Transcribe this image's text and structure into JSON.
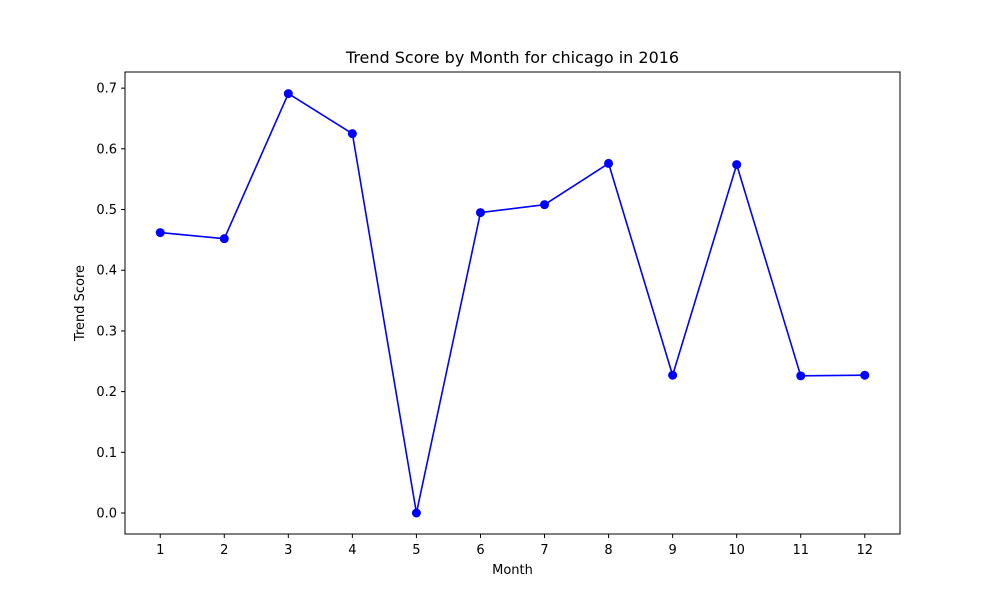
{
  "chart_data": {
    "type": "line",
    "title": "Trend Score by Month for chicago in 2016",
    "xlabel": "Month",
    "ylabel": "Trend Score",
    "x": [
      1,
      2,
      3,
      4,
      5,
      6,
      7,
      8,
      9,
      10,
      11,
      12
    ],
    "xticks": [
      "1",
      "2",
      "3",
      "4",
      "5",
      "6",
      "7",
      "8",
      "9",
      "10",
      "11",
      "12"
    ],
    "xlim": [
      0.45,
      12.55
    ],
    "ylim": [
      -0.0346,
      0.7266
    ],
    "yticks": [
      "0.0",
      "0.1",
      "0.2",
      "0.3",
      "0.4",
      "0.5",
      "0.6",
      "0.7"
    ],
    "ytick_values": [
      0.0,
      0.1,
      0.2,
      0.3,
      0.4,
      0.5,
      0.6,
      0.7
    ],
    "series": [
      {
        "values": [
          0.462,
          0.452,
          0.691,
          0.625,
          0.0,
          0.495,
          0.508,
          0.576,
          0.227,
          0.574,
          0.226,
          0.227
        ],
        "color": "#0000ff",
        "marker": "circle"
      }
    ],
    "grid": false,
    "legend": "none"
  }
}
